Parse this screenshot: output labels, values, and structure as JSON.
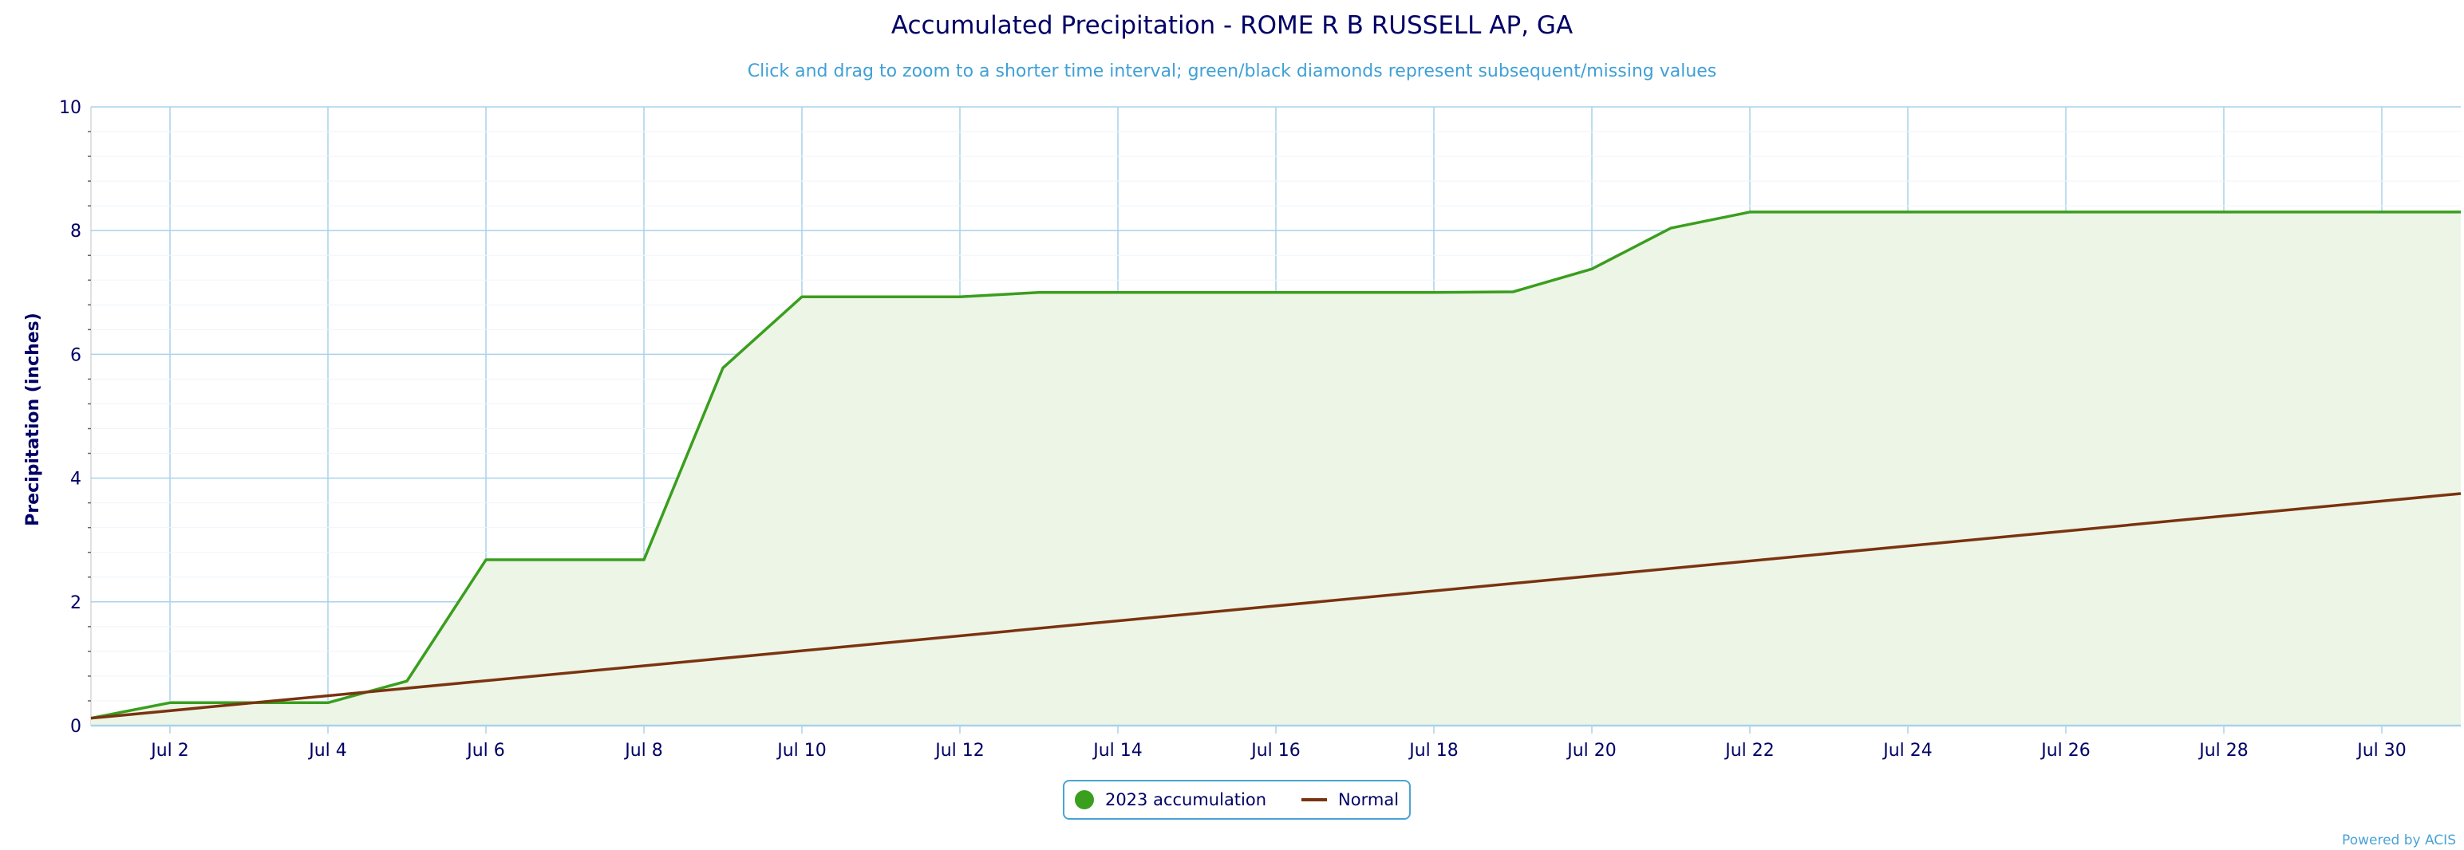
{
  "colors": {
    "observed": "#3a9e1e",
    "observed_fill": "#edf5e6",
    "normal": "#7a3310",
    "title": "#000066",
    "subtitle": "#3fa0d6",
    "grid": "#a9d2ea",
    "axis": "#000066"
  },
  "chart_data": {
    "type": "line",
    "title": "Accumulated Precipitation - ROME R B RUSSELL AP, GA",
    "subtitle": "Click and drag to zoom to a shorter time interval; green/black diamonds represent subsequent/missing values",
    "ylabel": "Precipitation (inches)",
    "xlabel": "",
    "ylim": [
      0,
      10
    ],
    "yticks": [
      0,
      2,
      4,
      6,
      8,
      10
    ],
    "xlim": [
      1,
      31
    ],
    "xticks": [
      {
        "day": 2,
        "label": "Jul 2"
      },
      {
        "day": 4,
        "label": "Jul 4"
      },
      {
        "day": 6,
        "label": "Jul 6"
      },
      {
        "day": 8,
        "label": "Jul 8"
      },
      {
        "day": 10,
        "label": "Jul 10"
      },
      {
        "day": 12,
        "label": "Jul 12"
      },
      {
        "day": 14,
        "label": "Jul 14"
      },
      {
        "day": 16,
        "label": "Jul 16"
      },
      {
        "day": 18,
        "label": "Jul 18"
      },
      {
        "day": 20,
        "label": "Jul 20"
      },
      {
        "day": 22,
        "label": "Jul 22"
      },
      {
        "day": 24,
        "label": "Jul 24"
      },
      {
        "day": 26,
        "label": "Jul 26"
      },
      {
        "day": 28,
        "label": "Jul 28"
      },
      {
        "day": 30,
        "label": "Jul 30"
      }
    ],
    "grid": true,
    "legend_position": "bottom-center",
    "series": [
      {
        "name": "2023 accumulation",
        "style": "area",
        "x": [
          1,
          2,
          3,
          4,
          5,
          6,
          7,
          8,
          9,
          10,
          11,
          12,
          13,
          14,
          15,
          16,
          17,
          18,
          19,
          20,
          21,
          22,
          23,
          24,
          25,
          26,
          27,
          28,
          29,
          30,
          31
        ],
        "values": [
          0.12,
          0.37,
          0.37,
          0.37,
          0.72,
          2.68,
          2.68,
          2.68,
          5.78,
          6.93,
          6.93,
          6.93,
          7.0,
          7.0,
          7.0,
          7.0,
          7.0,
          7.0,
          7.01,
          7.38,
          8.04,
          8.3,
          8.3,
          8.3,
          8.3,
          8.3,
          8.3,
          8.3,
          8.3,
          8.3,
          8.3
        ]
      },
      {
        "name": "Normal",
        "style": "line",
        "x": [
          1,
          31
        ],
        "values": [
          0.12,
          3.75
        ]
      }
    ]
  },
  "credits": "Powered by ACIS"
}
